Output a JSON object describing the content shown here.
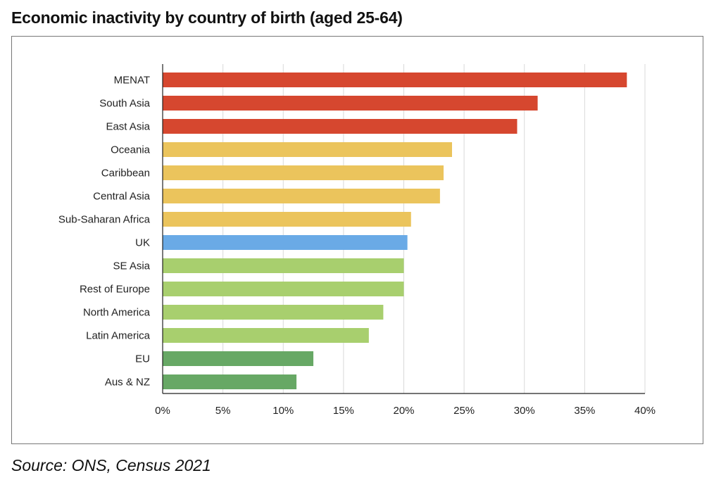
{
  "title": "Economic inactivity by country of birth (aged 25-64)",
  "source": "Source: ONS, Census 2021",
  "colors": {
    "red": "#d6472f",
    "amber": "#ebc45c",
    "blue": "#6aaae6",
    "light_green": "#a8cf6e",
    "dark_green": "#67a865",
    "grid": "#d9d9d9",
    "axis": "#222222"
  },
  "chart_data": {
    "type": "bar",
    "orientation": "horizontal",
    "title": "Economic inactivity by country of birth (aged 25-64)",
    "xlabel": "",
    "ylabel": "",
    "xlim": [
      0,
      40
    ],
    "xticks": [
      0,
      5,
      10,
      15,
      20,
      25,
      30,
      35,
      40
    ],
    "xtick_labels": [
      "0%",
      "5%",
      "10%",
      "15%",
      "20%",
      "25%",
      "30%",
      "35%",
      "40%"
    ],
    "grid": "vertical",
    "categories": [
      "MENAT",
      "South Asia",
      "East Asia",
      "Oceania",
      "Caribbean",
      "Central Asia",
      "Sub-Saharan Africa",
      "UK",
      "SE Asia",
      "Rest of Europe",
      "North America",
      "Latin America",
      "EU",
      "Aus & NZ"
    ],
    "values": [
      38.5,
      31.1,
      29.4,
      24.0,
      23.3,
      23.0,
      20.6,
      20.3,
      20.0,
      20.0,
      18.3,
      17.1,
      12.5,
      11.1
    ],
    "bar_colors": [
      "#d6472f",
      "#d6472f",
      "#d6472f",
      "#ebc45c",
      "#ebc45c",
      "#ebc45c",
      "#ebc45c",
      "#6aaae6",
      "#a8cf6e",
      "#a8cf6e",
      "#a8cf6e",
      "#a8cf6e",
      "#67a865",
      "#67a865"
    ]
  }
}
